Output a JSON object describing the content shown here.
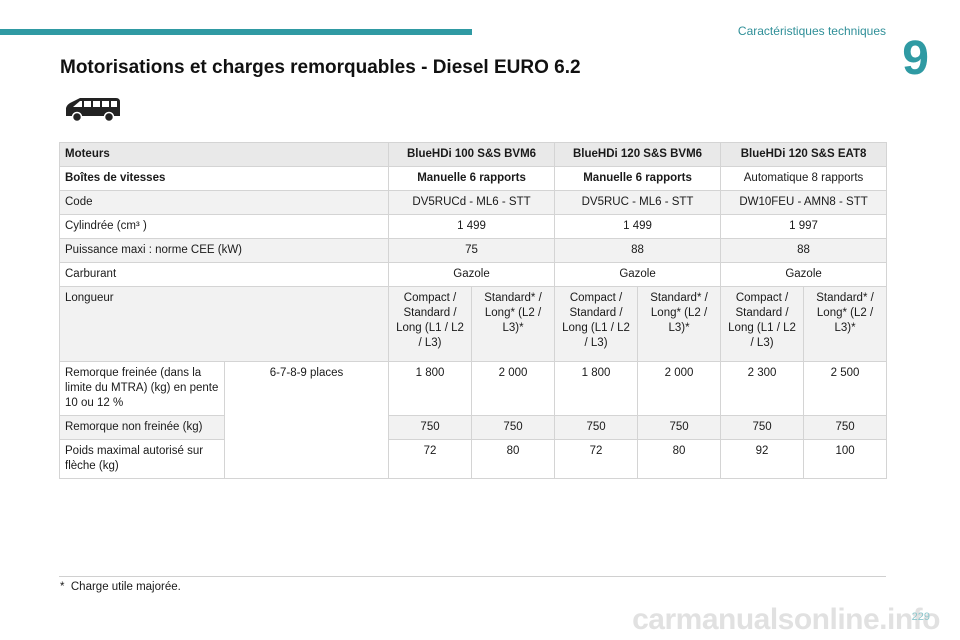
{
  "header": {
    "section_title": "Caractéristiques techniques",
    "chapter_number": "9"
  },
  "page_title": "Motorisations et charges remorquables - Diesel EURO 6.2",
  "vehicle_icon": "van-icon",
  "table": {
    "engines_label": "Moteurs",
    "engines": [
      "BlueHDi 100 S&S BVM6",
      "BlueHDi 120 S&S BVM6",
      "BlueHDi 120 S&S EAT8"
    ],
    "gearbox_label": "Boîtes de vitesses",
    "gearboxes": [
      "Manuelle 6 rapports",
      "Manuelle 6 rapports",
      "Automatique 8 rapports"
    ],
    "code_label": "Code",
    "codes": [
      "DV5RUCd - ML6 - STT",
      "DV5RUC - ML6 - STT",
      "DW10FEU - AMN8 - STT"
    ],
    "displacement_label": "Cylindrée (cm³ )",
    "displacements": [
      "1 499",
      "1 499",
      "1 997"
    ],
    "power_label": "Puissance maxi : norme CEE (kW)",
    "powers": [
      "75",
      "88",
      "88"
    ],
    "fuel_label": "Carburant",
    "fuels": [
      "Gazole",
      "Gazole",
      "Gazole"
    ],
    "length_label": "Longueur",
    "length_compact": "Compact / Standard / Long (L1 / L2 / L3)",
    "length_standard": "Standard* / Long* (L2 / L3)*",
    "braked_label": "Remorque freinée (dans la limite du MTRA) (kg) en pente 10 ou 12 %",
    "places": "6-7-8-9 places",
    "braked_values": [
      "1 800",
      "2 000",
      "1 800",
      "2 000",
      "2 300",
      "2 500"
    ],
    "unbraked_label": "Remorque non freinée (kg)",
    "unbraked_values": [
      "750",
      "750",
      "750",
      "750",
      "750",
      "750"
    ],
    "noseweight_label": "Poids maximal autorisé sur flèche (kg)",
    "noseweight_values": [
      "72",
      "80",
      "72",
      "80",
      "92",
      "100"
    ]
  },
  "footnote": {
    "marker": "*",
    "text": "Charge utile majorée."
  },
  "page_number": "229",
  "watermark": "carmanualsonline.info"
}
